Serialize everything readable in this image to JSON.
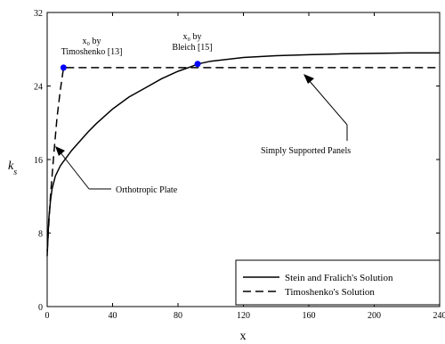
{
  "chart_data": {
    "type": "line",
    "xlabel": "x",
    "ylabel": "k_s",
    "xlim": [
      0,
      240
    ],
    "ylim": [
      0,
      32
    ],
    "x_ticks": [
      0,
      40,
      80,
      120,
      160,
      200,
      240
    ],
    "y_ticks": [
      0,
      8,
      16,
      24,
      32
    ],
    "grid": false,
    "legend_position": "bottom-right",
    "series": [
      {
        "name": "Stein and Fralich's Solution",
        "style": "solid",
        "color": "#000000",
        "x": [
          0,
          1,
          2,
          3,
          5,
          8,
          10,
          15,
          20,
          25,
          30,
          40,
          50,
          60,
          70,
          80,
          88,
          92,
          100,
          120,
          140,
          160,
          180,
          200,
          220,
          240
        ],
        "y": [
          5.5,
          9.5,
          11.5,
          12.8,
          14.2,
          15.3,
          15.8,
          17.0,
          18.0,
          19.0,
          19.9,
          21.5,
          22.8,
          23.8,
          24.8,
          25.6,
          26.1,
          26.4,
          26.7,
          27.1,
          27.3,
          27.4,
          27.5,
          27.55,
          27.6,
          27.6
        ]
      },
      {
        "name": "Timoshenko's Solution",
        "style": "dashed",
        "color": "#000000",
        "x": [
          0,
          2,
          4,
          6,
          8,
          10,
          240
        ],
        "y": [
          6.0,
          12.0,
          16.5,
          20.5,
          23.5,
          26.0,
          26.0
        ]
      }
    ],
    "points": [
      {
        "label": "x₀ by Timoshenko [13]",
        "x": 10,
        "y": 26.0,
        "color": "#0000ff"
      },
      {
        "label": "x₀ by Bleich [15]",
        "x": 92,
        "y": 26.4,
        "color": "#0000ff"
      }
    ],
    "annotations": {
      "timoshenko_line1": "x₀ by",
      "timoshenko_line2": "Timoshenko [13]",
      "bleich_line1": "x₀ by",
      "bleich_line2": "Bleich [15]",
      "simply_supported": "Simply Supported Panels",
      "orthotropic": "Orthotropic Plate"
    }
  }
}
